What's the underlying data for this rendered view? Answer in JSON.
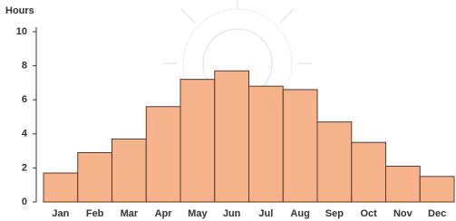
{
  "chart_data": {
    "type": "bar",
    "title": "Hours",
    "categories": [
      "Jan",
      "Feb",
      "Mar",
      "Apr",
      "May",
      "Jun",
      "Jul",
      "Aug",
      "Sep",
      "Oct",
      "Nov",
      "Dec"
    ],
    "values": [
      1.7,
      2.9,
      3.7,
      5.6,
      7.2,
      7.7,
      6.8,
      6.6,
      4.7,
      3.5,
      2.1,
      1.5
    ],
    "color": "#f4a577",
    "ylim": [
      0,
      10
    ],
    "yticks": [
      0,
      2,
      4,
      6,
      8,
      10
    ],
    "grid": false
  }
}
